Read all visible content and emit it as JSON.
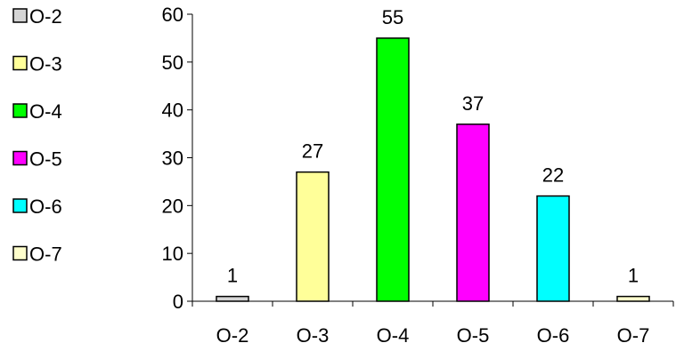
{
  "chart_data": {
    "type": "bar",
    "categories": [
      "O-2",
      "O-3",
      "O-4",
      "O-5",
      "O-6",
      "O-7"
    ],
    "values": [
      1,
      27,
      55,
      37,
      22,
      1
    ],
    "colors": [
      "#d4d4d4",
      "#ffff99",
      "#00ff00",
      "#ff00ff",
      "#00ffff",
      "#ffffcc"
    ],
    "ylim": [
      0,
      60
    ],
    "yticks": [
      0,
      10,
      20,
      30,
      40,
      50,
      60
    ],
    "title": "",
    "xlabel": "",
    "ylabel": "",
    "legend": {
      "position": "left",
      "entries": [
        "O-2",
        "O-3",
        "O-4",
        "O-5",
        "O-6",
        "O-7"
      ]
    },
    "grid": false,
    "data_labels": true
  }
}
